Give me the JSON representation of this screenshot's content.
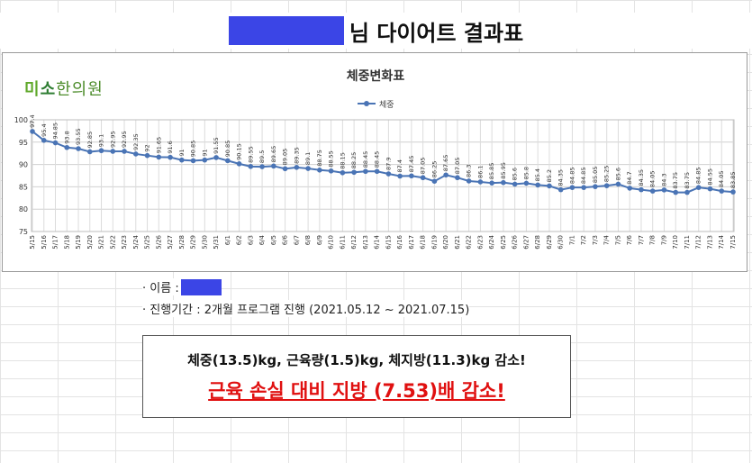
{
  "header": {
    "title": "님 다이어트 결과표"
  },
  "logo": {
    "mi": "미",
    "so": "소",
    "rest": "한의원"
  },
  "info": {
    "name_label": "· 이름 :",
    "period_label": "· 진행기간 : 2개월 프로그램 진행 (2021.05.12 ~ 2021.07.15)"
  },
  "summary": {
    "line1": "체중(13.5)kg, 근육량(1.5)kg, 체지방(11.3)kg 감소!",
    "line2": "근육 손실 대비 지방 (7.53)배 감소!"
  },
  "colors": {
    "series": "#4a74b5",
    "redaction": "#3b45e6",
    "highlight": "#e01010"
  },
  "chart_data": {
    "type": "line",
    "title": "체중변화표",
    "xlabel": "",
    "ylabel": "",
    "ylim": [
      75,
      100
    ],
    "yticks": [
      75,
      80,
      85,
      90,
      95,
      100
    ],
    "grid": true,
    "legend_position": "top",
    "categories": [
      "5/15",
      "5/16",
      "5/17",
      "5/18",
      "5/19",
      "5/20",
      "5/21",
      "5/22",
      "5/23",
      "5/24",
      "5/25",
      "5/26",
      "5/27",
      "5/28",
      "5/29",
      "5/30",
      "5/31",
      "6/1",
      "6/2",
      "6/3",
      "6/4",
      "6/5",
      "6/6",
      "6/7",
      "6/8",
      "6/9",
      "6/10",
      "6/11",
      "6/12",
      "6/13",
      "6/14",
      "6/15",
      "6/16",
      "6/17",
      "6/18",
      "6/19",
      "6/20",
      "6/21",
      "6/22",
      "6/23",
      "6/24",
      "6/25",
      "6/26",
      "6/27",
      "6/28",
      "6/29",
      "6/30",
      "7/1",
      "7/2",
      "7/3",
      "7/4",
      "7/5",
      "7/6",
      "7/7",
      "7/8",
      "7/9",
      "7/10",
      "7/11",
      "7/12",
      "7/13",
      "7/14",
      "7/15"
    ],
    "series": [
      {
        "name": "체중",
        "values": [
          97.4,
          95.4,
          94.85,
          93.8,
          93.55,
          92.85,
          93.1,
          92.95,
          92.95,
          92.35,
          92,
          91.65,
          91.6,
          91,
          90.85,
          91,
          91.55,
          90.85,
          90.15,
          89.55,
          89.5,
          89.65,
          89.05,
          89.35,
          89.1,
          88.75,
          88.55,
          88.15,
          88.25,
          88.45,
          88.45,
          87.9,
          87.4,
          87.45,
          87.05,
          86.25,
          87.65,
          87.05,
          86.3,
          86.1,
          85.85,
          85.95,
          85.6,
          85.8,
          85.4,
          85.2,
          84.35,
          84.85,
          84.85,
          85.05,
          85.25,
          85.6,
          84.7,
          84.35,
          84.05,
          84.3,
          83.75,
          83.75,
          84.85,
          84.55,
          84.05,
          83.85
        ]
      }
    ]
  }
}
